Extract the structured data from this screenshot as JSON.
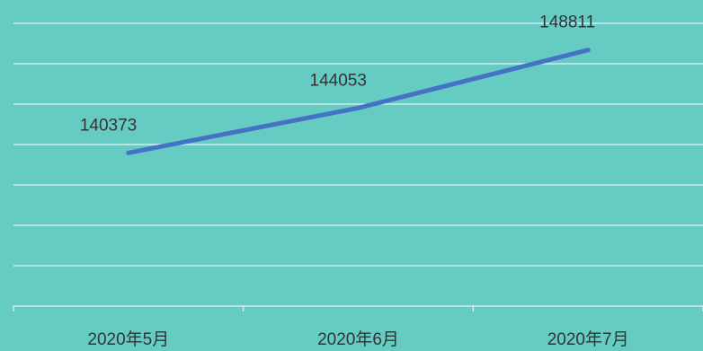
{
  "chart_data": {
    "type": "line",
    "categories": [
      "2020年5月",
      "2020年6月",
      "2020年7月"
    ],
    "values": [
      140373,
      144053,
      148811
    ],
    "data_labels": [
      "140373",
      "144053",
      "148811"
    ],
    "ylim": [
      127800,
      151000
    ],
    "grid": true,
    "grid_lines": 8,
    "legend": "none",
    "colors": {
      "background": "#66ccc3",
      "line": "#4472c4",
      "grid": "#e7f3f1",
      "text": "#333333"
    }
  }
}
